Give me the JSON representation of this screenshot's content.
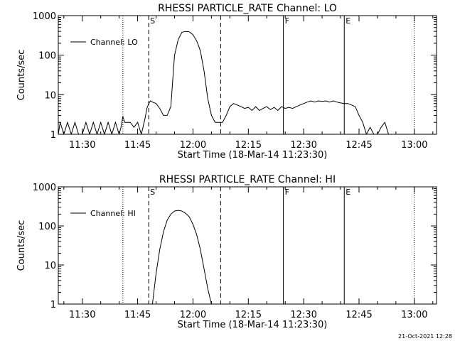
{
  "chart_data": [
    {
      "type": "line",
      "title": "RHESSI PARTICLE_RATE Channel: LO",
      "xlabel": "Start Time (18-Mar-14 11:23:30)",
      "ylabel": "Counts/sec",
      "yscale": "log",
      "ylim": [
        1,
        1000
      ],
      "xlim": [
        "11:23:30",
        "13:06:00"
      ],
      "x_ticks": [
        "11:30",
        "11:45",
        "12:00",
        "12:15",
        "12:30",
        "12:45",
        "13:00"
      ],
      "y_ticks": [
        "1",
        "10",
        "100",
        "1000"
      ],
      "legend": {
        "label": "Channel: LO",
        "position": "top-left"
      },
      "markers": [
        {
          "time": "11:41:00",
          "style": "dotted",
          "label": ""
        },
        {
          "time": "11:48:00",
          "style": "dashed",
          "label": "S"
        },
        {
          "time": "12:07:30",
          "style": "dashed",
          "label": ""
        },
        {
          "time": "12:24:30",
          "style": "solid",
          "label": "F"
        },
        {
          "time": "12:41:00",
          "style": "solid",
          "label": "E"
        },
        {
          "time": "13:00:00",
          "style": "dotted",
          "label": ""
        }
      ],
      "series": [
        {
          "x": [
            "11:23:30",
            "11:24:00",
            "11:25:00",
            "11:26:00",
            "11:27:00",
            "11:28:00",
            "11:29:00",
            "11:30:00",
            "11:31:00",
            "11:32:00",
            "11:33:00",
            "11:34:00",
            "11:35:00",
            "11:36:00",
            "11:37:00",
            "11:38:00",
            "11:39:00",
            "11:40:00",
            "11:40:30",
            "11:41:00",
            "11:41:30",
            "11:42:00",
            "11:43:00",
            "11:44:00",
            "11:45:00",
            "11:46:00",
            "11:47:00",
            "11:47:30",
            "11:48:00",
            "11:48:30",
            "11:49:00",
            "11:50:00",
            "11:51:00",
            "11:52:00",
            "11:53:00",
            "11:54:00",
            "11:55:00",
            "11:56:00",
            "11:57:00",
            "11:58:00",
            "11:59:00",
            "12:00:00",
            "12:01:00",
            "12:02:00",
            "12:03:00",
            "12:04:00",
            "12:05:00",
            "12:06:00",
            "12:07:00",
            "12:08:00",
            "12:09:00",
            "12:10:00",
            "12:11:00",
            "12:12:00",
            "12:13:00",
            "12:14:00",
            "12:15:00",
            "12:16:00",
            "12:17:00",
            "12:18:00",
            "12:19:00",
            "12:20:00",
            "12:21:00",
            "12:22:00",
            "12:23:00",
            "12:24:00",
            "12:25:00",
            "12:26:00",
            "12:27:00",
            "12:28:00",
            "12:29:00",
            "12:30:00",
            "12:31:00",
            "12:32:00",
            "12:33:00",
            "12:34:00",
            "12:35:00",
            "12:36:00",
            "12:37:00",
            "12:38:00",
            "12:39:00",
            "12:40:00",
            "12:41:00",
            "12:42:00",
            "12:43:00",
            "12:44:00",
            "12:45:00",
            "12:46:00",
            "12:47:00",
            "12:48:00",
            "12:49:00",
            "12:50:00",
            "12:51:00",
            "12:52:00",
            "12:53:00",
            "12:54:00",
            "12:55:00",
            "12:56:00",
            "12:57:00",
            "12:58:00",
            "12:59:00",
            "13:00:00",
            "13:01:00",
            "13:02:00",
            "13:03:00",
            "13:04:00",
            "13:05:00",
            "13:06:00"
          ],
          "values": [
            1,
            2,
            1,
            2,
            1,
            2,
            1,
            1,
            2,
            1,
            2,
            1,
            2,
            1,
            2,
            1,
            2,
            1,
            1.5,
            2.8,
            2,
            2,
            2,
            1.5,
            2,
            1,
            2.5,
            4.5,
            6,
            7,
            6.5,
            6,
            4.5,
            3,
            3,
            5,
            100,
            250,
            380,
            400,
            390,
            330,
            230,
            130,
            40,
            8,
            3,
            2,
            2,
            2,
            3,
            5,
            6,
            5.5,
            5,
            4.5,
            4.8,
            4,
            5,
            4,
            4.5,
            5,
            4.2,
            4.8,
            4,
            5,
            4.5,
            4.8,
            4.5,
            5,
            5.5,
            6,
            6.5,
            7,
            6.5,
            7,
            6.8,
            7,
            6.5,
            7,
            6.5,
            6.2,
            6,
            6,
            5.5,
            5,
            3,
            2,
            1,
            1.5,
            1,
            1,
            1.5,
            2,
            1,
            1,
            1,
            1,
            1,
            1,
            1,
            1,
            1,
            1,
            1,
            1,
            1,
            1
          ]
        }
      ]
    },
    {
      "type": "line",
      "title": "RHESSI PARTICLE_RATE Channel: HI",
      "xlabel": "Start Time (18-Mar-14 11:23:30)",
      "ylabel": "Counts/sec",
      "yscale": "log",
      "ylim": [
        1,
        1000
      ],
      "xlim": [
        "11:23:30",
        "13:06:00"
      ],
      "x_ticks": [
        "11:30",
        "11:45",
        "12:00",
        "12:15",
        "12:30",
        "12:45",
        "13:00"
      ],
      "y_ticks": [
        "1",
        "10",
        "100",
        "1000"
      ],
      "legend": {
        "label": "Channel: HI",
        "position": "top-left"
      },
      "markers": [
        {
          "time": "11:41:00",
          "style": "dotted",
          "label": ""
        },
        {
          "time": "11:48:00",
          "style": "dashed",
          "label": "S"
        },
        {
          "time": "12:07:30",
          "style": "dashed",
          "label": ""
        },
        {
          "time": "12:24:30",
          "style": "solid",
          "label": "F"
        },
        {
          "time": "12:41:00",
          "style": "solid",
          "label": "E"
        },
        {
          "time": "13:00:00",
          "style": "dotted",
          "label": ""
        }
      ],
      "series": [
        {
          "x": [
            "11:49:00",
            "11:50:00",
            "11:51:00",
            "11:52:00",
            "11:53:00",
            "11:54:00",
            "11:55:00",
            "11:56:00",
            "11:57:00",
            "11:58:00",
            "11:59:00",
            "12:00:00",
            "12:01:00",
            "12:02:00",
            "12:03:00",
            "12:04:00",
            "12:05:00"
          ],
          "values": [
            1,
            6,
            25,
            70,
            140,
            200,
            240,
            250,
            240,
            210,
            170,
            110,
            60,
            25,
            8,
            2.5,
            1
          ]
        }
      ]
    }
  ],
  "footer": "21-Oct-2021 12:28"
}
